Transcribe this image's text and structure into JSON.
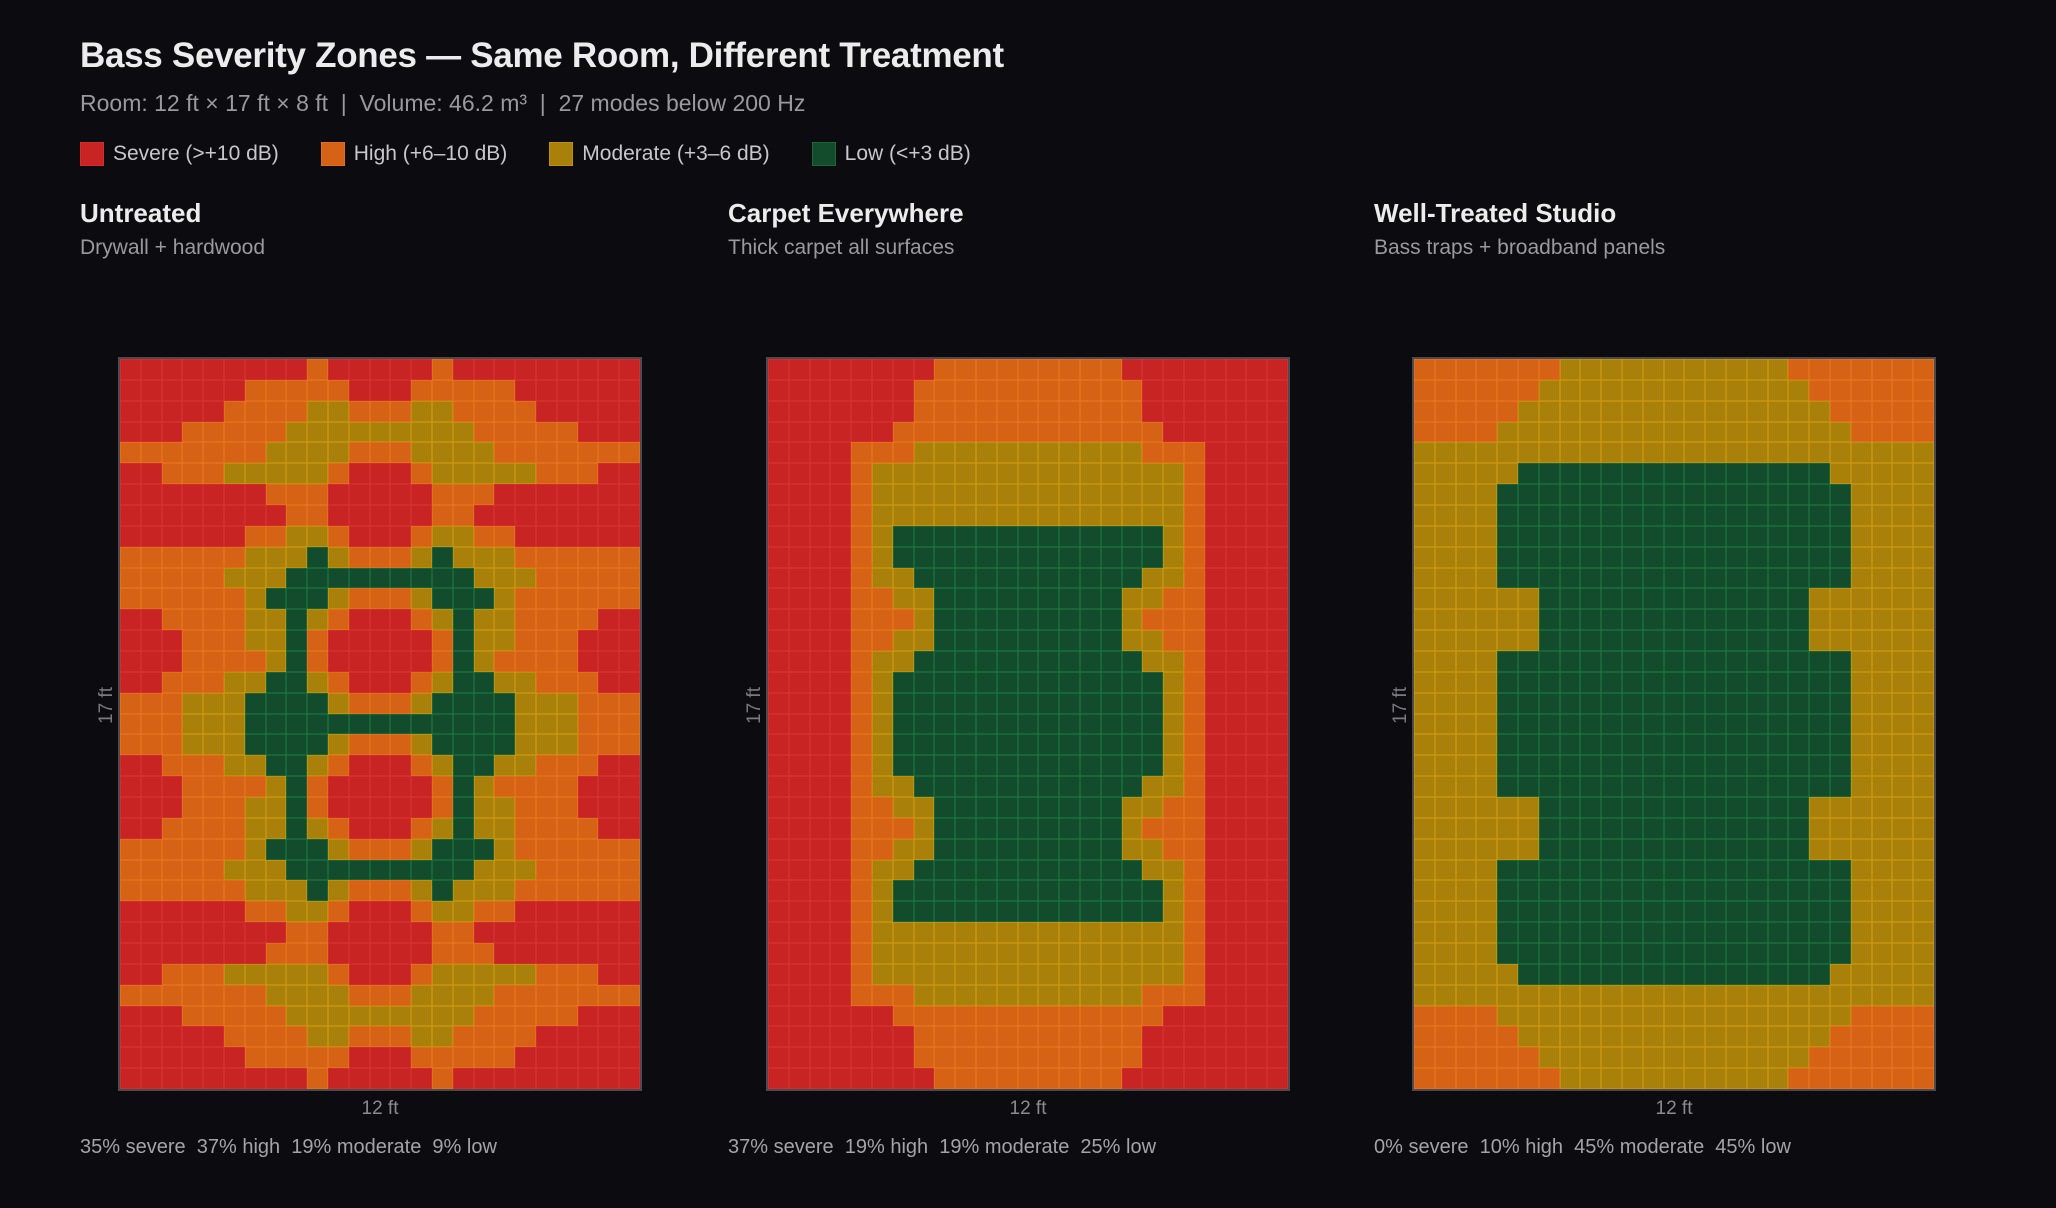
{
  "header": {
    "title": "Bass Severity Zones — Same Room, Different Treatment",
    "subtitle": "Room: 12 ft × 17 ft × 8 ft  |  Volume: 46.2 m³  |  27 modes below 200 Hz"
  },
  "legend": [
    {
      "key": "S",
      "label": "Severe (>+10 dB)",
      "color": "#c92424"
    },
    {
      "key": "H",
      "label": "High (+6–10 dB)",
      "color": "#d66315"
    },
    {
      "key": "M",
      "label": "Moderate (+3–6 dB)",
      "color": "#a8800a"
    },
    {
      "key": "L",
      "label": "Low (<+3 dB)",
      "color": "#124c2c"
    }
  ],
  "panels": [
    {
      "title": "Untreated",
      "subtitle": "Drywall + hardwood",
      "xlabel": "12 ft",
      "ylabel": "17 ft",
      "stats": "35% severe  37% high  19% moderate  9% low"
    },
    {
      "title": "Carpet Everywhere",
      "subtitle": "Thick carpet all surfaces",
      "xlabel": "12 ft",
      "ylabel": "17 ft",
      "stats": "37% severe  19% high  19% moderate  25% low"
    },
    {
      "title": "Well-Treated Studio",
      "subtitle": "Bass traps + broadband panels",
      "xlabel": "12 ft",
      "ylabel": "17 ft",
      "stats": "0% severe  10% high  45% moderate  45% low"
    }
  ],
  "chart_data": [
    {
      "type": "heatmap",
      "title": "Untreated",
      "subtitle": "Drywall + hardwood",
      "xlabel": "12 ft",
      "ylabel": "17 ft",
      "columns": 25,
      "rows": 35,
      "categories": {
        "S": "Severe (>+10 dB)",
        "H": "High (+6–10 dB)",
        "M": "Moderate (+3–6 dB)",
        "L": "Low (<+3 dB)"
      },
      "summary": {
        "severe": 35,
        "high": 37,
        "moderate": 19,
        "low": 9
      },
      "grid": [
        "SSSSSSSSSHSSSSSHSSSSSSSSS",
        "SSSSSSHHHHHSSSHHHHHSSSSSS",
        "SSSSSHHHHMMHHHMMHHHHSSSSS",
        "SSSHHHHHMMMMMMMMMHHHHHSSS",
        "HHHHHHHMMMMHHHMMMMHHHHHHH",
        "SSHHHMMMMMHSSSHMMMMMHHHSS",
        "SSSSSSSHHHSSSSSHHHSSSSSSS",
        "SSSSSSSSHHSSSSSHHSSSSSSSS",
        "SSSSSSHHMMHSSSHMMHHSSSSSS",
        "HHHHHHMMMLMHHHMLMMMHHHHHH",
        "HHHHHMMMLLLLLLLLLMMMHHHHH",
        "HHHHHHMLLLMHHHMLLLMHHHHHH",
        "SSHHHHMMLMHSSSHMLMMHHHHSS",
        "SSSHHHMMLHSSSSSHLMMHHHSSS",
        "SSSHHHHMLHSSSSSHLMHHHHSSS",
        "SSHHHMMLLMHSSSHMLLMMHHHSS",
        "HHHMMMLLLLMHHHMLLLLMMMHHH",
        "HHHMMMLLLLLLLLLLLLLMMMHHH",
        "HHHMMMLLLLMHHHMLLLLMMMHHH",
        "SSHHHMMLLMHSSSHMLLMMHHHSS",
        "SSSHHHHMLHSSSSSHLMHHHHSSS",
        "SSSHHHMMLHSSSSSHLMMHHHSSS",
        "SSHHHHMMLMHSSSHMLMMHHHHSS",
        "HHHHHHMLLLMHHHMLLLMHHHHHH",
        "HHHHHMMMLLLLLLLLLMMMHHHHH",
        "HHHHHHMMMLMHHHMLMMMHHHHHH",
        "SSSSSSHHMMHSSSHMMHHSSSSSS",
        "SSSSSSSSHHSSSSSHHSSSSSSSS",
        "SSSSSSSHHHSSSSSHHHSSSSSSS",
        "SSHHHMMMMMHSSSHMMMMMHHHSS",
        "HHHHHHHMMMMHHHMMMMHHHHHHH",
        "SSSHHHHHMMMMMMMMMHHHHHSSS",
        "SSSSSHHHHMMHHHMMHHHHSSSSS",
        "SSSSSSHHHHHSSSHHHHHSSSSSS",
        "SSSSSSSSSHSSSSSHSSSSSSSSS"
      ]
    },
    {
      "type": "heatmap",
      "title": "Carpet Everywhere",
      "subtitle": "Thick carpet all surfaces",
      "xlabel": "12 ft",
      "ylabel": "17 ft",
      "columns": 25,
      "rows": 35,
      "summary": {
        "severe": 37,
        "high": 19,
        "moderate": 19,
        "low": 25
      },
      "grid": [
        "SSSSSSSSHHHHHHHHHSSSSSSSS",
        "SSSSSSSHHHHHHHHHHHSSSSSSS",
        "SSSSSSSHHHHHHHHHHHSSSSSSS",
        "SSSSSSHHHHHHHHHHHHHSSSSSS",
        "SSSSHHHMMMMMMMMMMMHHHSSSS",
        "SSSSHMMMMMMMMMMMMMMMHSSSS",
        "SSSSHMMMMMMMMMMMMMMMHSSSS",
        "SSSSHMMMMMMMMMMMMMMMHSSSS",
        "SSSSHMLLLLLLLLLLLLLMHSSSS",
        "SSSSHMLLLLLLLLLLLLLMHSSSS",
        "SSSSHMMLLLLLLLLLLLMMHSSSS",
        "SSSSHHMMLLLLLLLLLMMHHSSSS",
        "SSSSHHHMLLLLLLLLLMHHHSSSS",
        "SSSSHHMMLLLLLLLLLMMHHSSSS",
        "SSSSHMMLLLLLLLLLLLMMHSSSS",
        "SSSSHMLLLLLLLLLLLLLMHSSSS",
        "SSSSHMLLLLLLLLLLLLLMHSSSS",
        "SSSSHMLLLLLLLLLLLLLMHSSSS",
        "SSSSHMLLLLLLLLLLLLLMHSSSS",
        "SSSSHMLLLLLLLLLLLLLMHSSSS",
        "SSSSHMMLLLLLLLLLLLMMHSSSS",
        "SSSSHHMMLLLLLLLLLMMHHSSSS",
        "SSSSHHHMLLLLLLLLLMHHHSSSS",
        "SSSSHHMMLLLLLLLLLMMHHSSSS",
        "SSSSHMMLLLLLLLLLLLMMHSSSS",
        "SSSSHMLLLLLLLLLLLLLMHSSSS",
        "SSSSHMLLLLLLLLLLLLLMHSSSS",
        "SSSSHMMMMMMMMMMMMMMMHSSSS",
        "SSSSHMMMMMMMMMMMMMMMHSSSS",
        "SSSSHMMMMMMMMMMMMMMMHSSSS",
        "SSSSHHHMMMMMMMMMMMHHHSSSS",
        "SSSSSSHHHHHHHHHHHHHSSSSSS",
        "SSSSSSSHHHHHHHHHHHSSSSSSS",
        "SSSSSSSHHHHHHHHHHHSSSSSSS",
        "SSSSSSSSHHHHHHHHHSSSSSSSS"
      ]
    },
    {
      "type": "heatmap",
      "title": "Well-Treated Studio",
      "subtitle": "Bass traps + broadband panels",
      "xlabel": "12 ft",
      "ylabel": "17 ft",
      "columns": 25,
      "rows": 35,
      "summary": {
        "severe": 0,
        "high": 10,
        "moderate": 45,
        "low": 45
      },
      "grid": [
        "HHHHHHHMMMMMMMMMMMHHHHHHH",
        "HHHHHHMMMMMMMMMMMMMHHHHHH",
        "HHHHHMMMMMMMMMMMMMMMHHHHH",
        "HHHHMMMMMMMMMMMMMMMMMHHHH",
        "MMMMMMMMMMMMMMMMMMMMMMMMM",
        "MMMMMLLLLLLLLLLLLLLLMMMMM",
        "MMMMLLLLLLLLLLLLLLLLLMMMM",
        "MMMMLLLLLLLLLLLLLLLLLMMMM",
        "MMMMLLLLLLLLLLLLLLLLLMMMM",
        "MMMMLLLLLLLLLLLLLLLLLMMMM",
        "MMMMLLLLLLLLLLLLLLLLLMMMM",
        "MMMMMMLLLLLLLLLLLLLMMMMMM",
        "MMMMMMLLLLLLLLLLLLLMMMMMM",
        "MMMMMMLLLLLLLLLLLLLMMMMMM",
        "MMMMLLLLLLLLLLLLLLLLLMMMM",
        "MMMMLLLLLLLLLLLLLLLLLMMMM",
        "MMMMLLLLLLLLLLLLLLLLLMMMM",
        "MMMMLLLLLLLLLLLLLLLLLMMMM",
        "MMMMLLLLLLLLLLLLLLLLLMMMM",
        "MMMMLLLLLLLLLLLLLLLLLMMMM",
        "MMMMLLLLLLLLLLLLLLLLLMMMM",
        "MMMMMMLLLLLLLLLLLLLMMMMMM",
        "MMMMMMLLLLLLLLLLLLLMMMMMM",
        "MMMMMMLLLLLLLLLLLLLMMMMMM",
        "MMMMLLLLLLLLLLLLLLLLLMMMM",
        "MMMMLLLLLLLLLLLLLLLLLMMMM",
        "MMMMLLLLLLLLLLLLLLLLLMMMM",
        "MMMMLLLLLLLLLLLLLLLLLMMMM",
        "MMMMLLLLLLLLLLLLLLLLLMMMM",
        "MMMMMLLLLLLLLLLLLLLLMMMMM",
        "MMMMMMMMMMMMMMMMMMMMMMMMM",
        "HHHHMMMMMMMMMMMMMMMMMHHHH",
        "HHHHHMMMMMMMMMMMMMMMHHHHH",
        "HHHHHHMMMMMMMMMMMMMHHHHHH",
        "HHHHHHHMMMMMMMMMMMHHHHHHH"
      ]
    }
  ]
}
